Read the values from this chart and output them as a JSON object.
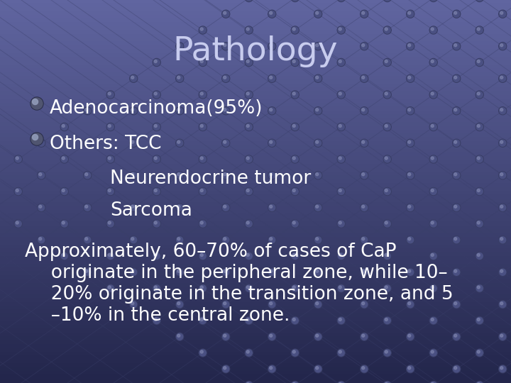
{
  "title": "Pathology",
  "title_color": "#c8ccee",
  "bg_color_top": "#6065a0",
  "bg_color_bottom": "#22254a",
  "text_color": "#ffffff",
  "font_size_body": 19,
  "font_size_title": 34,
  "bullet1_text": "Adenocarcinoma(95%)",
  "bullet2_text": "Others: TCC",
  "indent1_text": "Neurendocrine tumor",
  "indent2_text": "Sarcoma",
  "para_line1": "Approximately, 60–70% of cases of CaP",
  "para_line2": "  originate in the peripheral zone, while 10–",
  "para_line3": "  20% originate in the transition zone, and 5",
  "para_line4": "  –10% in the central zone.",
  "grid_color": "#3a3f6a",
  "dot_color": "#4a5080",
  "grid_alpha": 0.6,
  "dot_alpha": 0.8
}
